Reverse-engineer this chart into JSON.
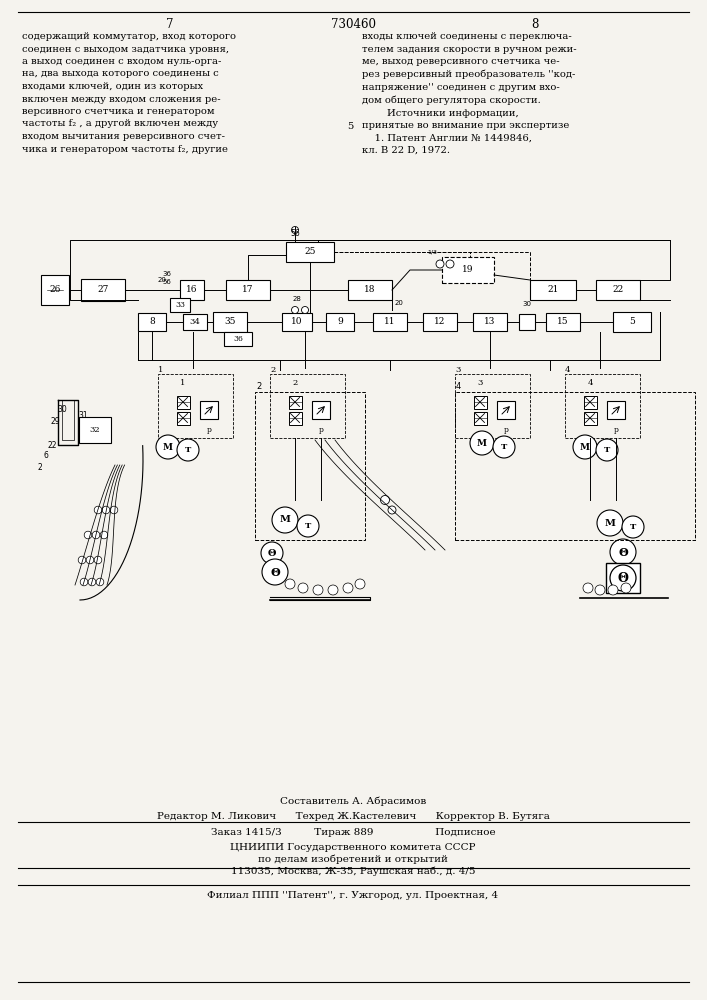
{
  "page_bg": "#f5f3ee",
  "page_num_left": "7",
  "page_num_center": "730460",
  "page_num_right": "8",
  "text_left": "содержащий коммутатор, вход которого\nсоединен с выходом задатчика уровня,\nа выход соединен с входом нуль-орга-\nна, два выхода которого соединены с\nвходами ключей, один из которых\nвключен между входом сложения ре-\nверсивного счетчика и генератором\nчастоты f₂ , а другой включен между\nвходом вычитания реверсивного счет-\nчика и генератором частоты f₂, другие",
  "text_right": "входы ключей соединены с переключа-\nтелем задания скорости в ручном режи-\nме, выход реверсивного счетчика че-\nрез реверсивный преобразователь ''код-\nнапряжение'' соединен с другим вхо-\nдом общего регулятора скорости.\n        Источники информации,\nпринятые во внимание при экспертизе\n    1. Патент Англии № 1449846,\nкл. В 22 D, 1972.",
  "line_number_5": "5",
  "editor_line": "Редактор М. Ликович      Техред Ж.Кастелевич      Корректор В. Бутяга",
  "order_line": "Заказ 1415/3          Тираж 889                   Подписное",
  "org_line1": "ЦНИИПИ Государственного комитета СССР",
  "org_line2": "по делам изобретений и открытий",
  "org_line3": "113035, Москва, Ж-35, Раушская наб., д. 4/5",
  "branch_line": "Филиал ППП ''Патент'', г. Ужгород, ул. Проектная, 4",
  "compositor_line": "Составитель А. Абрасимов"
}
